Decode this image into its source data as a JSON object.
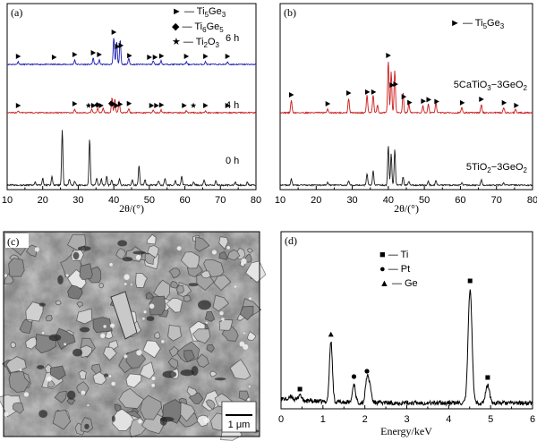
{
  "chart_data": [
    {
      "panel": "(a)",
      "type": "line",
      "xlabel": "2θ/(°)",
      "xlim": [
        10,
        80
      ],
      "xticks": [
        "10",
        "20",
        "30",
        "40",
        "50",
        "60",
        "70",
        "80"
      ],
      "legend": [
        {
          "symbol": "►",
          "text": "Ti5Ge3",
          "main": "Ti",
          "sub1": "5",
          "el2": "Ge",
          "sub2": "3"
        },
        {
          "symbol": "◆",
          "text": "Ti6Ge5",
          "main": "Ti",
          "sub1": "6",
          "el2": "Ge",
          "sub2": "5"
        },
        {
          "symbol": "★",
          "text": "Ti2O3",
          "main": "Ti",
          "sub1": "2",
          "el2": "O",
          "sub2": "3"
        }
      ],
      "series": [
        {
          "name": "6 h",
          "color": "#1d1db3",
          "peaks": [
            [
              13.1,
              3
            ],
            [
              29.0,
              5
            ],
            [
              34.2,
              7
            ],
            [
              35.9,
              5
            ],
            [
              40.0,
              30
            ],
            [
              40.8,
              26
            ],
            [
              41.8,
              28
            ],
            [
              44.2,
              7
            ],
            [
              51.1,
              4
            ],
            [
              53.3,
              4
            ],
            [
              60.4,
              3
            ],
            [
              65.8,
              3
            ],
            [
              72.0,
              3
            ]
          ],
          "markers": [
            [
              13.1,
              "tri"
            ],
            [
              23.2,
              "tri"
            ],
            [
              29.0,
              "tri"
            ],
            [
              34.2,
              "tri"
            ],
            [
              35.9,
              "tri"
            ],
            [
              40.0,
              "tri"
            ],
            [
              41.0,
              "tri"
            ],
            [
              42.0,
              "tri"
            ],
            [
              44.4,
              "tri"
            ],
            [
              50.0,
              "tri"
            ],
            [
              51.6,
              "tri"
            ],
            [
              53.4,
              "tri"
            ],
            [
              60.4,
              "tri"
            ],
            [
              65.8,
              "tri"
            ],
            [
              72.0,
              "tri"
            ]
          ]
        },
        {
          "name": "4 h",
          "color": "#cc1b1b",
          "peaks": [
            [
              13.1,
              2
            ],
            [
              29.0,
              4
            ],
            [
              33.8,
              4
            ],
            [
              35.5,
              5
            ],
            [
              37.0,
              5
            ],
            [
              39.5,
              17
            ],
            [
              40.3,
              15
            ],
            [
              41.5,
              14
            ],
            [
              44.2,
              5
            ],
            [
              51.1,
              3
            ],
            [
              53.3,
              3
            ],
            [
              60.4,
              2
            ],
            [
              65.8,
              2
            ]
          ],
          "markers": [
            [
              13.1,
              "tri"
            ],
            [
              29.0,
              "tri"
            ],
            [
              32.9,
              "star"
            ],
            [
              34.3,
              "tri"
            ],
            [
              35.3,
              "dia"
            ],
            [
              36.4,
              "tri"
            ],
            [
              39.2,
              "dia"
            ],
            [
              40.0,
              "tri"
            ],
            [
              40.8,
              "tri"
            ],
            [
              41.8,
              "tri"
            ],
            [
              44.3,
              "tri"
            ],
            [
              50.6,
              "tri"
            ],
            [
              52.0,
              "tri"
            ],
            [
              53.4,
              "tri"
            ],
            [
              59.8,
              "tri"
            ],
            [
              62.4,
              "star"
            ],
            [
              65.8,
              "tri"
            ],
            [
              72.0,
              "tri"
            ]
          ]
        },
        {
          "name": "0 h",
          "color": "#1a1a1a",
          "peaks": [
            [
              17.9,
              3
            ],
            [
              20.0,
              8
            ],
            [
              22.6,
              10
            ],
            [
              25.5,
              62
            ],
            [
              27.5,
              7
            ],
            [
              29.0,
              5
            ],
            [
              33.2,
              52
            ],
            [
              35.2,
              8
            ],
            [
              36.5,
              7
            ],
            [
              38.0,
              10
            ],
            [
              39.4,
              6
            ],
            [
              41.6,
              8
            ],
            [
              45.2,
              6
            ],
            [
              47.1,
              22
            ],
            [
              48.8,
              6
            ],
            [
              52.6,
              5
            ],
            [
              54.4,
              8
            ],
            [
              57.3,
              5
            ],
            [
              59.1,
              10
            ],
            [
              62.5,
              4
            ],
            [
              65.4,
              6
            ],
            [
              68.7,
              5
            ],
            [
              74.2,
              4
            ],
            [
              77.6,
              4
            ]
          ],
          "markers": []
        }
      ]
    },
    {
      "panel": "(b)",
      "type": "line",
      "xlabel": "2θ/(°)",
      "xlim": [
        10,
        80
      ],
      "xticks": [
        "10",
        "20",
        "30",
        "40",
        "50",
        "60",
        "70",
        "80"
      ],
      "legend": [
        {
          "symbol": "►",
          "text": "Ti5Ge3",
          "main": "Ti",
          "sub1": "5",
          "el2": "Ge",
          "sub2": "3"
        }
      ],
      "series": [
        {
          "name": "5CaTiO3−3GeO2",
          "color": "#cc1b1b",
          "peaks": [
            [
              13.1,
              14
            ],
            [
              23.2,
              4
            ],
            [
              29.0,
              16
            ],
            [
              34.1,
              20
            ],
            [
              35.8,
              20
            ],
            [
              37.0,
              8
            ],
            [
              40.0,
              58
            ],
            [
              40.8,
              46
            ],
            [
              41.8,
              48
            ],
            [
              44.1,
              22
            ],
            [
              45.7,
              10
            ],
            [
              49.6,
              8
            ],
            [
              51.1,
              10
            ],
            [
              53.2,
              12
            ],
            [
              60.4,
              6
            ],
            [
              65.8,
              9
            ],
            [
              72.0,
              6
            ],
            [
              75.3,
              4
            ]
          ],
          "markers": [
            [
              13.1,
              "tri"
            ],
            [
              23.2,
              "tri"
            ],
            [
              29.0,
              "tri"
            ],
            [
              34.2,
              "tri"
            ],
            [
              35.9,
              "tri"
            ],
            [
              40.0,
              "tri"
            ],
            [
              41.0,
              "tri"
            ],
            [
              42.0,
              "tri"
            ],
            [
              44.3,
              "tri"
            ],
            [
              45.9,
              "tri"
            ],
            [
              49.7,
              "tri"
            ],
            [
              51.2,
              "tri"
            ],
            [
              53.4,
              "tri"
            ],
            [
              60.5,
              "tri"
            ],
            [
              65.8,
              "tri"
            ],
            [
              72.1,
              "tri"
            ],
            [
              75.5,
              "tri"
            ]
          ]
        },
        {
          "name": "5TiO2−3GeO2",
          "color": "#1a1a1a",
          "peaks": [
            [
              13.1,
              7
            ],
            [
              23.2,
              3
            ],
            [
              29.0,
              5
            ],
            [
              34.1,
              13
            ],
            [
              35.8,
              16
            ],
            [
              40.0,
              44
            ],
            [
              40.8,
              35
            ],
            [
              41.8,
              40
            ],
            [
              44.1,
              9
            ],
            [
              45.7,
              4
            ],
            [
              51.1,
              5
            ],
            [
              53.2,
              5
            ],
            [
              60.4,
              3
            ],
            [
              65.8,
              6
            ],
            [
              72.0,
              3
            ]
          ],
          "markers": []
        }
      ]
    },
    {
      "panel": "(d)",
      "type": "line",
      "xlabel": "Energy/keV",
      "xlim": [
        0,
        6
      ],
      "xticks": [
        "0",
        "1",
        "2",
        "3",
        "4",
        "5",
        "6"
      ],
      "legend": [
        {
          "symbol": "■",
          "text": "Ti"
        },
        {
          "symbol": "●",
          "text": "Pt"
        },
        {
          "symbol": "▲",
          "text": "Ge"
        }
      ],
      "series": [
        {
          "name": "EDS",
          "color": "#000000",
          "peaks": [
            [
              0.25,
              4
            ],
            [
              0.45,
              7
            ],
            [
              1.19,
              68
            ],
            [
              1.74,
              21
            ],
            [
              2.05,
              27
            ],
            [
              2.12,
              18
            ],
            [
              4.51,
              128
            ],
            [
              4.93,
              20
            ]
          ],
          "markers": [
            [
              0.45,
              "square"
            ],
            [
              1.19,
              "up"
            ],
            [
              1.74,
              "circle"
            ],
            [
              2.05,
              "circle"
            ],
            [
              4.51,
              "square"
            ],
            [
              4.93,
              "square"
            ]
          ]
        }
      ]
    }
  ],
  "panels": {
    "a": {
      "label": "(a)"
    },
    "b": {
      "label": "(b)"
    },
    "c": {
      "label": "(c)",
      "scalebar": "1 μm"
    },
    "d": {
      "label": "(d)"
    }
  }
}
